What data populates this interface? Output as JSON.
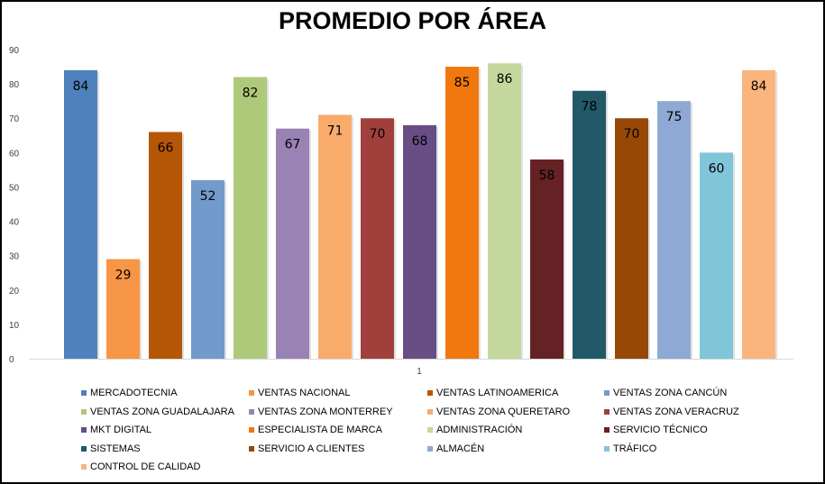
{
  "chart_data": {
    "type": "bar",
    "title": "PROMEDIO POR ÁREA",
    "xlabel": "",
    "ylabel": "",
    "ylim": [
      0,
      90
    ],
    "yticks": [
      0,
      10,
      20,
      30,
      40,
      50,
      60,
      70,
      80,
      90
    ],
    "categories": [
      "1"
    ],
    "grid": false,
    "legend_position": "bottom",
    "series": [
      {
        "name": "MERCADOTECNIA",
        "values": [
          84
        ],
        "color": "#4F81BD"
      },
      {
        "name": "VENTAS NACIONAL",
        "values": [
          29
        ],
        "color": "#F79646"
      },
      {
        "name": "VENTAS LATINOAMERICA",
        "values": [
          66
        ],
        "color": "#B65708"
      },
      {
        "name": "VENTAS ZONA CANCÚN",
        "values": [
          52
        ],
        "color": "#729ACA"
      },
      {
        "name": "VENTAS ZONA GUADALAJARA",
        "values": [
          82
        ],
        "color": "#AFC97A"
      },
      {
        "name": "VENTAS ZONA MONTERREY",
        "values": [
          67
        ],
        "color": "#9983B5"
      },
      {
        "name": "VENTAS ZONA QUERETARO",
        "values": [
          71
        ],
        "color": "#F9AB6B"
      },
      {
        "name": "VENTAS ZONA VERACRUZ",
        "values": [
          70
        ],
        "color": "#A0403D"
      },
      {
        "name": "MKT DIGITAL",
        "values": [
          68
        ],
        "color": "#684E84"
      },
      {
        "name": "ESPECIALISTA DE MARCA",
        "values": [
          85
        ],
        "color": "#F1780E"
      },
      {
        "name": "ADMINISTRACIÓN",
        "values": [
          86
        ],
        "color": "#C5D89E"
      },
      {
        "name": "SERVICIO TÉCNICO",
        "values": [
          58
        ],
        "color": "#652224"
      },
      {
        "name": "SISTEMAS",
        "values": [
          78
        ],
        "color": "#215968"
      },
      {
        "name": "SERVICIO A CLIENTES",
        "values": [
          70
        ],
        "color": "#974806"
      },
      {
        "name": "ALMACÉN",
        "values": [
          75
        ],
        "color": "#8EA9D3"
      },
      {
        "name": "TRÁFICO",
        "values": [
          60
        ],
        "color": "#81C5D8"
      },
      {
        "name": "CONTROL DE CALIDAD",
        "values": [
          84
        ],
        "color": "#FAB57E"
      }
    ]
  }
}
